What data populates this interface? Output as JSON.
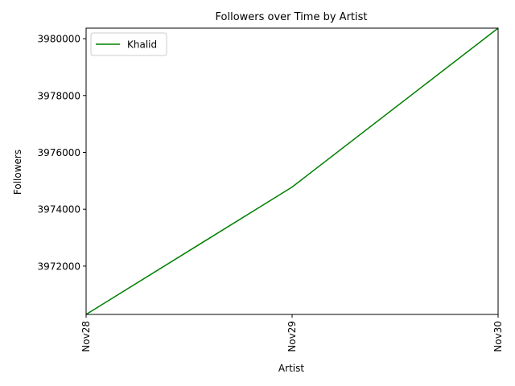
{
  "chart_data": {
    "type": "line",
    "title": "Followers over Time by Artist",
    "xlabel": "Artist",
    "ylabel": "Followers",
    "categories": [
      "Nov28",
      "Nov29",
      "Nov30"
    ],
    "series": [
      {
        "name": "Khalid",
        "color": "#008000",
        "values": [
          3970300,
          3974780,
          3980370
        ]
      }
    ],
    "ylim": [
      3970300,
      3980370
    ],
    "yticks": [
      3972000,
      3974000,
      3976000,
      3978000,
      3980000
    ],
    "grid": false,
    "legend": "top-left"
  }
}
